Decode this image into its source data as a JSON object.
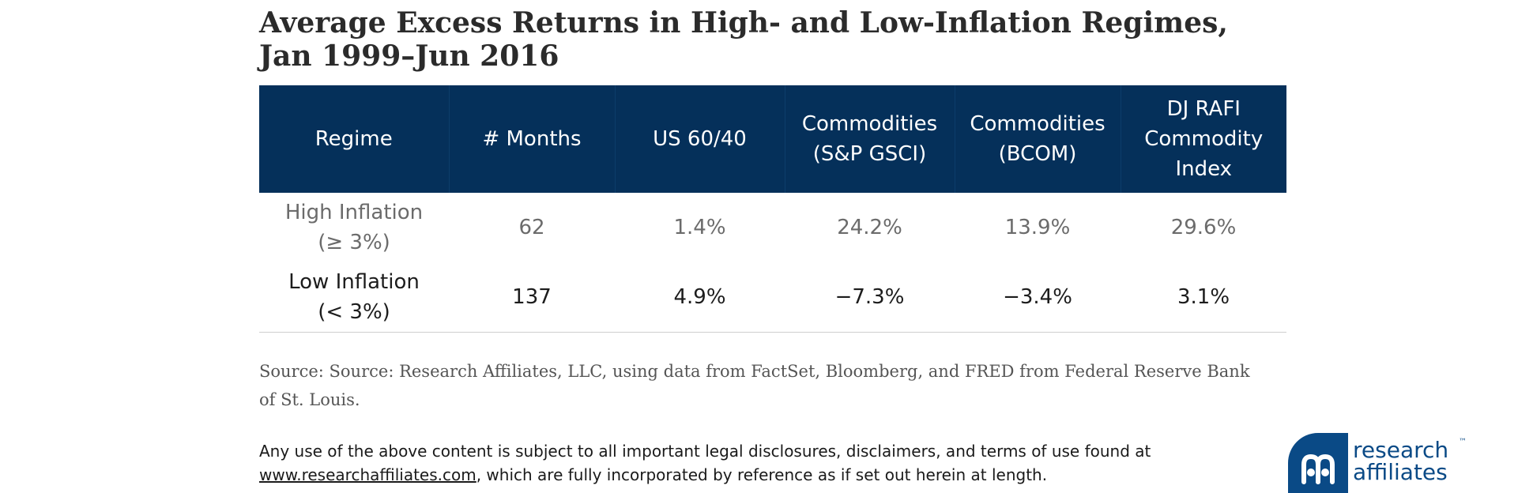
{
  "title_line1": "Average Excess Returns in High- and Low-Inflation Regimes,",
  "title_line2": "Jan 1999–Jun 2016",
  "chart_data": {
    "type": "table",
    "columns": [
      [
        "Regime"
      ],
      [
        "# Months"
      ],
      [
        "US 60/40"
      ],
      [
        "Commodities",
        "(S&P GSCI)"
      ],
      [
        "Commodities",
        "(BCOM)"
      ],
      [
        "DJ RAFI",
        "Commodity",
        "Index"
      ]
    ],
    "rows": [
      {
        "regime": [
          "High Inflation",
          "(≥ 3%)"
        ],
        "months": "62",
        "us6040": "1.4%",
        "gsci": "24.2%",
        "bcom": "13.9%",
        "djrafi": "29.6%"
      },
      {
        "regime": [
          "Low Inflation",
          "(< 3%)"
        ],
        "months": "137",
        "us6040": "4.9%",
        "gsci": "−7.3%",
        "bcom": "−3.4%",
        "djrafi": "3.1%"
      }
    ]
  },
  "source": "Source: Source: Research Affiliates, LLC, using data from FactSet, Bloomberg, and FRED from Federal Reserve Bank of St. Louis.",
  "legal": {
    "text_before": "Any use of the above content is subject to all important legal disclosures, disclaimers, and terms of use found at",
    "link": "www.researchaffiliates.com",
    "text_after": ", which are fully incorporated by reference as if set out herein at length."
  },
  "logo": {
    "line1": "research",
    "line2": "affiliates",
    "tm": "™",
    "icon": "research-affiliates-logo-icon"
  },
  "colors": {
    "header_bg": "#05305a",
    "header_text": "#ffffff",
    "logo_blue": "#0a4a86"
  }
}
